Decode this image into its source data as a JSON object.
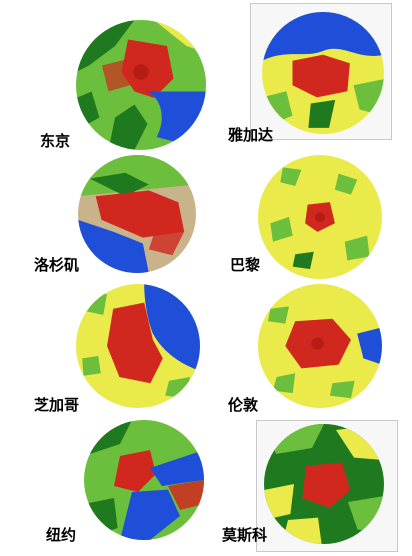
{
  "figure": {
    "cities": [
      {
        "id": "tokyo",
        "label": "东京"
      },
      {
        "id": "jakarta",
        "label": "雅加达"
      },
      {
        "id": "los-angeles",
        "label": "洛杉矶"
      },
      {
        "id": "paris",
        "label": "巴黎"
      },
      {
        "id": "chicago",
        "label": "芝加哥"
      },
      {
        "id": "london",
        "label": "伦敦"
      },
      {
        "id": "new-york",
        "label": "纽约"
      },
      {
        "id": "moscow",
        "label": "莫斯科"
      }
    ]
  },
  "palette": {
    "urban": "#d0281e",
    "water": "#1f4fd8",
    "forest": "#1f7a1f",
    "grass": "#6cbf3c",
    "agriculture": "#eaea4a",
    "bare": "#c9b38a"
  }
}
